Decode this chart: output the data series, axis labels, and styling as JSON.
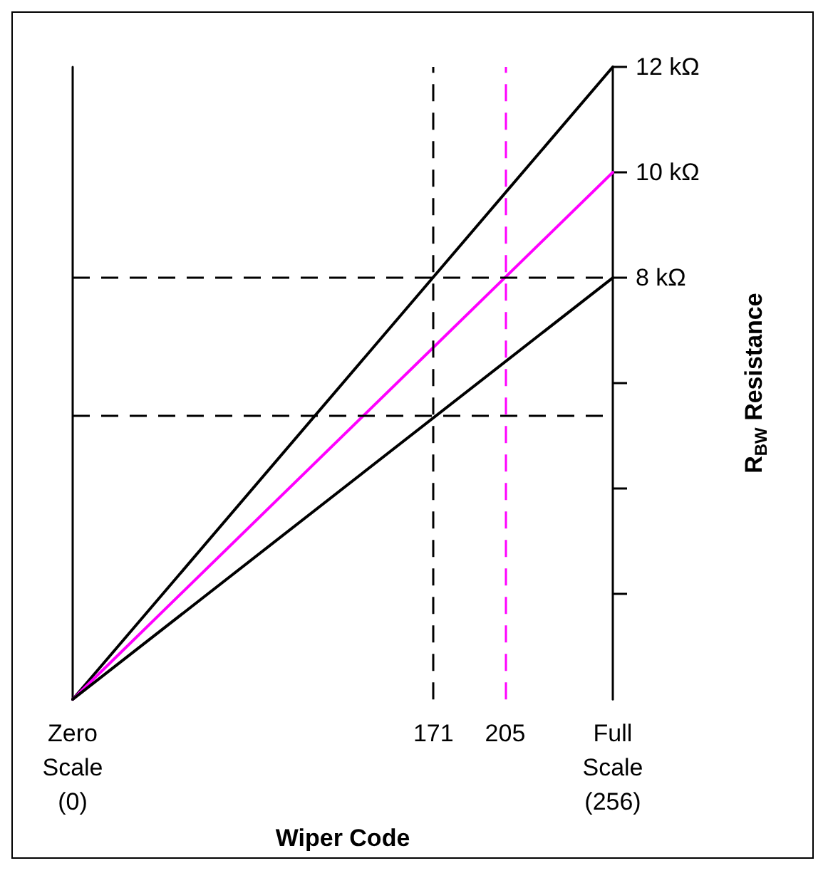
{
  "chart_data": {
    "type": "line",
    "xlabel": "Wiper Code",
    "ylabel": "R$_{BW}$ Resistance",
    "x": [
      0,
      256
    ],
    "series": [
      {
        "color": "#000000",
        "values": [
          0,
          12
        ]
      },
      {
        "color": "#ff00ff",
        "values": [
          0,
          10
        ]
      },
      {
        "color": "#000000",
        "values": [
          0,
          8
        ]
      }
    ],
    "xlim": [
      0,
      256
    ],
    "ylim": [
      0,
      12
    ],
    "xticks": [
      {
        "value": 0,
        "label": "Zero\nScale\n(0)"
      },
      171,
      205,
      {
        "value": 256,
        "label": "Full\nScale\n(256)"
      }
    ],
    "yticks": [
      {
        "value": 2,
        "label": null
      },
      {
        "value": 4,
        "label": null
      },
      {
        "value": 6,
        "label": null
      },
      {
        "value": 8,
        "label": "8 kΩ"
      },
      {
        "value": 10,
        "label": "10 kΩ"
      },
      {
        "value": 12,
        "label": "12 kΩ"
      }
    ],
    "ref_lines": [
      {
        "axis": "y",
        "value": 8,
        "color": "#000000",
        "line_style": "dashed"
      },
      {
        "axis": "y",
        "value": 5.4,
        "color": "#000000",
        "line_style": "dashed"
      },
      {
        "axis": "x",
        "value": 171,
        "color": "#000000",
        "line_style": "dashed"
      },
      {
        "axis": "x",
        "value": 205,
        "color": "#ff00ff",
        "line_style": "dashed"
      }
    ],
    "grid": false,
    "marker": "none",
    "line_style": "solid"
  }
}
